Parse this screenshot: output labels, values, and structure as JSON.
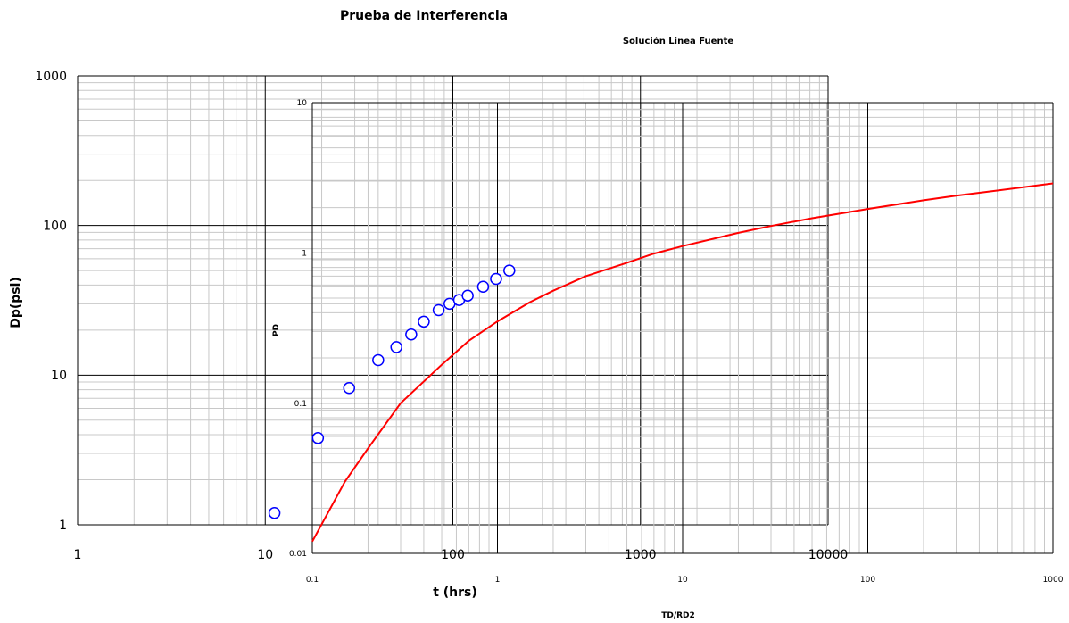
{
  "chart_data": [
    {
      "id": "field",
      "type": "scatter",
      "title": "Prueba de Interferencia",
      "xlabel": "t (hrs)",
      "ylabel": "Dp(psi)",
      "x_scale": "log",
      "y_scale": "log",
      "xlim": [
        1,
        10000
      ],
      "ylim": [
        1,
        1000
      ],
      "x_ticks": [
        "1",
        "10",
        "100",
        "1000",
        "10000"
      ],
      "y_ticks": [
        "1",
        "10",
        "100",
        "1000"
      ],
      "grid": true,
      "series": [
        {
          "marker": "circle",
          "color": "#0000ff",
          "x": [
            11.2,
            19.1,
            28.0,
            40.0,
            50.0,
            60.0,
            70.0,
            84.0,
            96.0,
            108.0,
            120.0,
            145.0,
            170.0,
            200.0
          ],
          "y": [
            1.2,
            3.8,
            8.2,
            12.6,
            15.4,
            18.7,
            22.8,
            27.2,
            30.0,
            31.8,
            34.0,
            39.0,
            44.0,
            50.0
          ]
        }
      ]
    },
    {
      "id": "type_curve",
      "type": "line",
      "title": "Solución Linea Fuente",
      "xlabel": "TD/RD2",
      "ylabel": "PD",
      "x_scale": "log",
      "y_scale": "log",
      "xlim": [
        0.1,
        1000
      ],
      "ylim": [
        0.01,
        10
      ],
      "x_ticks": [
        "0.1",
        "1",
        "10",
        "100",
        "1000"
      ],
      "y_ticks": [
        "0.01",
        "0.1",
        "1",
        "10"
      ],
      "grid": true,
      "series": [
        {
          "color": "#ff0000",
          "x": [
            0.1,
            0.15,
            0.2,
            0.3,
            0.5,
            0.7,
            1,
            1.5,
            2,
            3,
            5,
            7,
            10,
            20,
            30,
            50,
            100,
            200,
            300,
            500,
            1000
          ],
          "y": [
            0.012,
            0.03,
            0.05,
            0.1,
            0.18,
            0.26,
            0.35,
            0.47,
            0.56,
            0.7,
            0.86,
            0.99,
            1.11,
            1.36,
            1.51,
            1.7,
            1.96,
            2.24,
            2.4,
            2.6,
            2.9
          ]
        }
      ]
    }
  ],
  "colors": {
    "curve": "#ff0000",
    "points": "#0000ff",
    "grid_minor": "#c8c8c8",
    "grid_major": "#000000"
  }
}
